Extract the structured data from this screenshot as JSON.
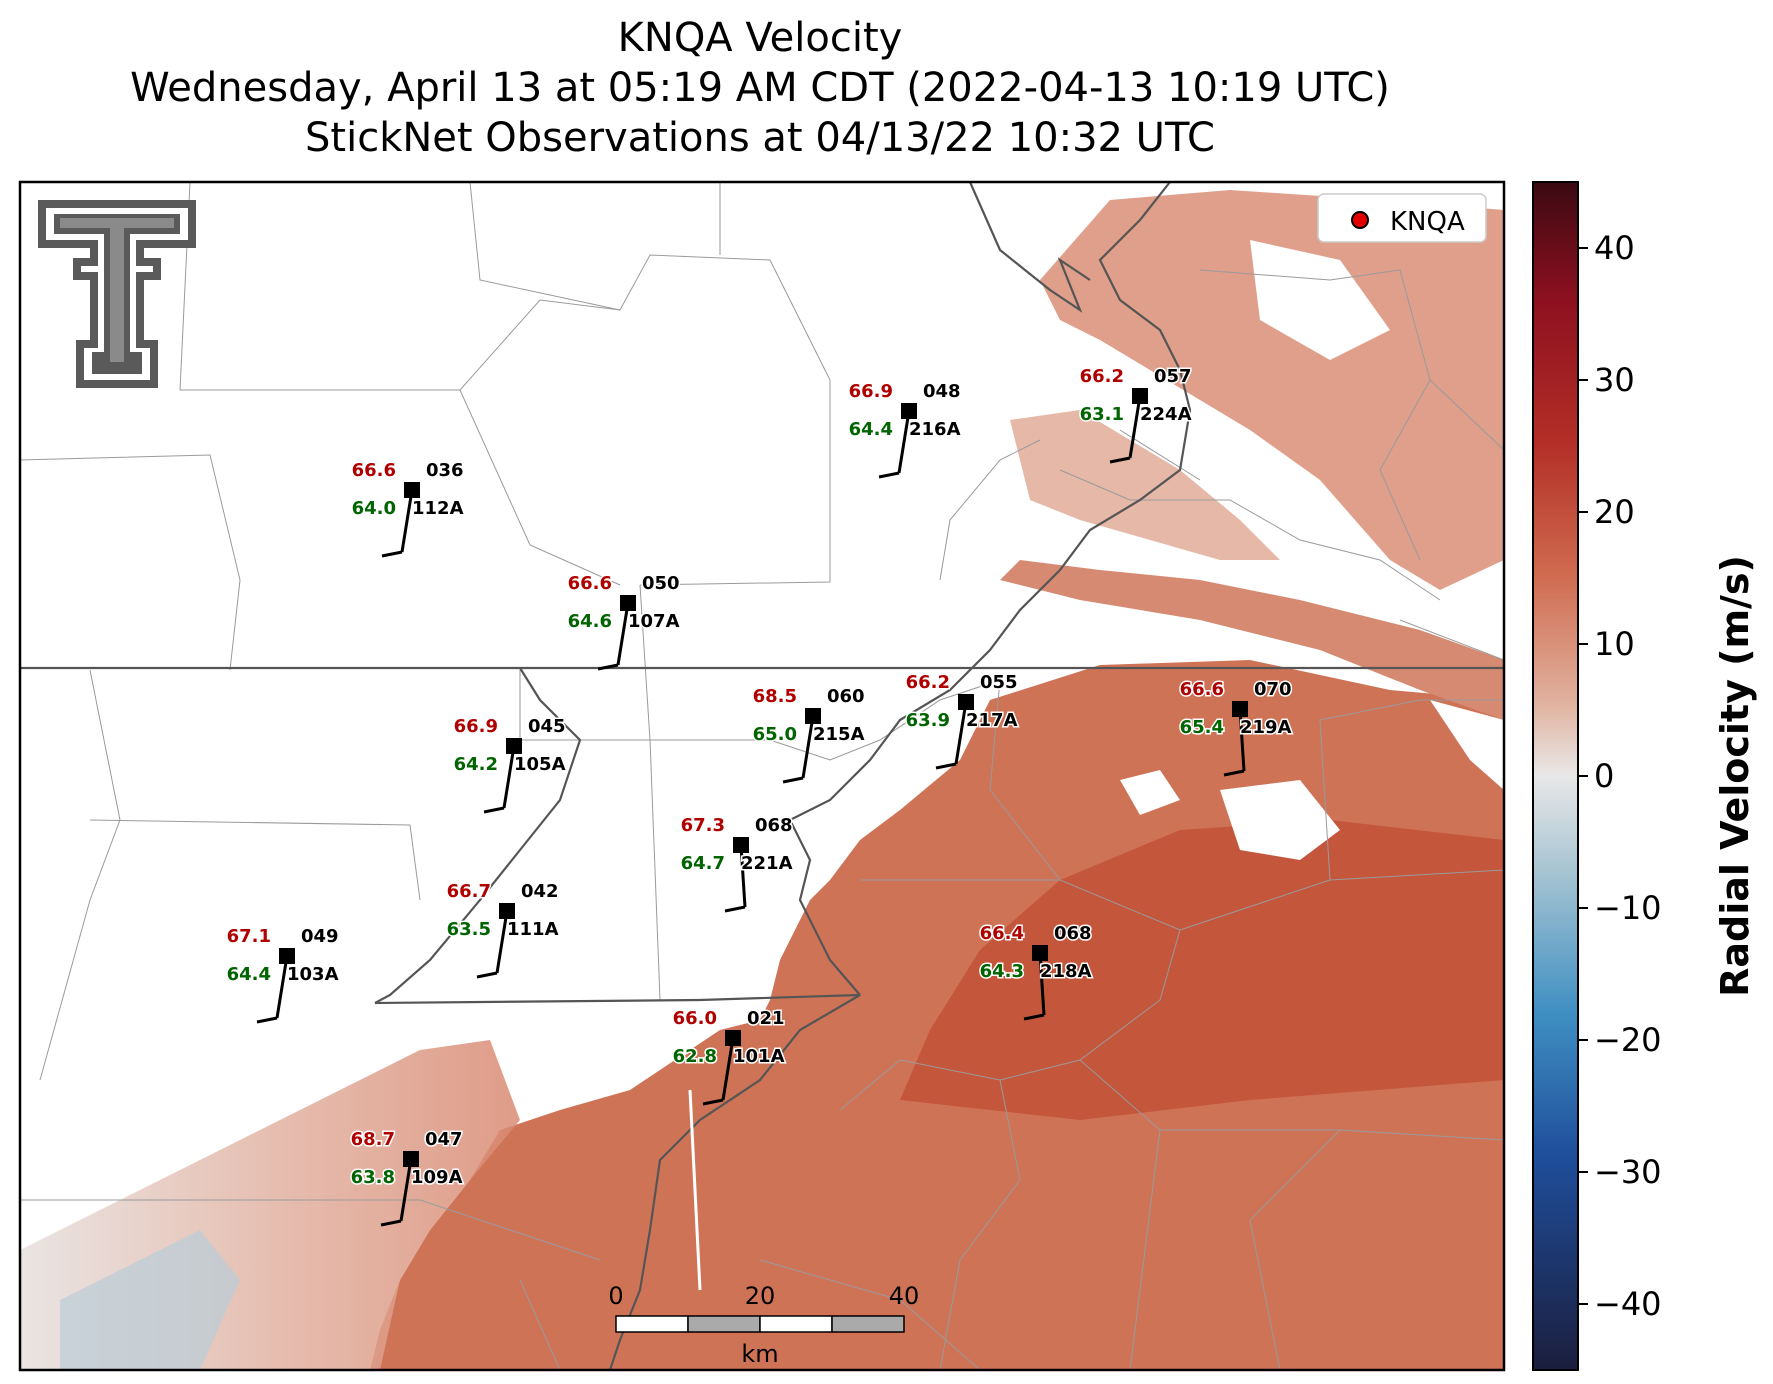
{
  "title": {
    "line1": "KNQA Velocity",
    "line2": "Wednesday, April 13 at 05:19 AM CDT (2022-04-13 10:19 UTC)",
    "line3": "StickNet Observations at 04/13/22 10:32 UTC"
  },
  "legend": {
    "marker_color": "#e00000",
    "label": "KNQA"
  },
  "logo": {
    "name": "texas-tech-double-t-logo",
    "color": "#5a5a5a"
  },
  "colorbar": {
    "label": "Radial Velocity (m/s)",
    "min": -45,
    "max": 45,
    "ticks": [
      40,
      30,
      20,
      10,
      0,
      -10,
      -20,
      -30,
      -40
    ],
    "tick_labels": [
      "40",
      "30",
      "20",
      "10",
      "0",
      "−10",
      "−20",
      "−30",
      "−40"
    ],
    "colors": [
      "#1b1e3d",
      "#1f4e9b",
      "#3f8fc2",
      "#a7c4d2",
      "#e8e8e8",
      "#e1b3a0",
      "#cf6a4f",
      "#b32f27",
      "#8e1020",
      "#3b0a12"
    ]
  },
  "scalebar": {
    "labels": [
      "0",
      "20",
      "40"
    ],
    "unit": "km"
  },
  "stations": [
    {
      "id": "112A",
      "temp": "66.6",
      "dew": "64.0",
      "dir": "036"
    },
    {
      "id": "216A",
      "temp": "66.9",
      "dew": "64.4",
      "dir": "048"
    },
    {
      "id": "224A",
      "temp": "66.2",
      "dew": "63.1",
      "dir": "057"
    },
    {
      "id": "107A",
      "temp": "66.6",
      "dew": "64.6",
      "dir": "050"
    },
    {
      "id": "105A",
      "temp": "66.9",
      "dew": "64.2",
      "dir": "045"
    },
    {
      "id": "215A",
      "temp": "68.5",
      "dew": "65.0",
      "dir": "060"
    },
    {
      "id": "217A",
      "temp": "66.2",
      "dew": "63.9",
      "dir": "055"
    },
    {
      "id": "219A",
      "temp": "66.6",
      "dew": "65.4",
      "dir": "070"
    },
    {
      "id": "221A",
      "temp": "67.3",
      "dew": "64.7",
      "dir": "068"
    },
    {
      "id": "111A",
      "temp": "66.7",
      "dew": "63.5",
      "dir": "042"
    },
    {
      "id": "103A",
      "temp": "67.1",
      "dew": "64.4",
      "dir": "049"
    },
    {
      "id": "218A",
      "temp": "66.4",
      "dew": "64.3",
      "dir": "068"
    },
    {
      "id": "101A",
      "temp": "66.0",
      "dew": "62.8",
      "dir": "021"
    },
    {
      "id": "109A",
      "temp": "68.7",
      "dew": "63.8",
      "dir": "047"
    }
  ]
}
